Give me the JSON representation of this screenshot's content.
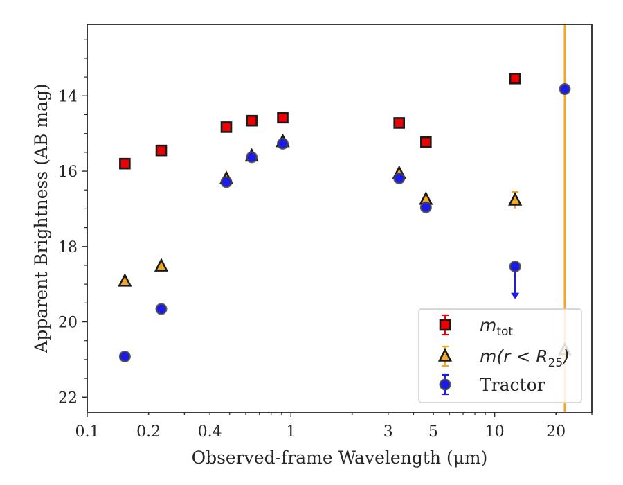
{
  "chart_data": {
    "type": "scatter",
    "title": "",
    "xlabel": "Observed-frame Wavelength (μm)",
    "ylabel": "Apparent Brightness (AB mag)",
    "xscale": "log",
    "xlim": [
      0.1,
      30
    ],
    "ylim": [
      22.4,
      12.1
    ],
    "y_inverted": true,
    "grid": false,
    "legend_position": "lower-right",
    "xticks": [
      {
        "value": 0.1,
        "label": "0.1"
      },
      {
        "value": 0.2,
        "label": "0.2"
      },
      {
        "value": 0.4,
        "label": "0.4"
      },
      {
        "value": 1,
        "label": "1"
      },
      {
        "value": 3,
        "label": "3"
      },
      {
        "value": 5,
        "label": "5"
      },
      {
        "value": 10,
        "label": "10"
      },
      {
        "value": 20,
        "label": "20"
      }
    ],
    "yticks": [
      {
        "value": 14,
        "label": "14"
      },
      {
        "value": 16,
        "label": "16"
      },
      {
        "value": 18,
        "label": "18"
      },
      {
        "value": 20,
        "label": "20"
      },
      {
        "value": 22,
        "label": "22"
      }
    ],
    "vline": {
      "x": 22.1,
      "color": "#f5a623"
    },
    "series": [
      {
        "name": "m_tot",
        "legend_main": "m",
        "legend_sub": "tot",
        "marker": "square",
        "fill": "#ee0000",
        "edge": "#1a1a1a",
        "errcolor": "#ee0000",
        "points": [
          {
            "x": 0.153,
            "y": 15.8
          },
          {
            "x": 0.231,
            "y": 15.45
          },
          {
            "x": 0.482,
            "y": 14.83
          },
          {
            "x": 0.642,
            "y": 14.66
          },
          {
            "x": 0.912,
            "y": 14.58
          },
          {
            "x": 3.4,
            "y": 14.72
          },
          {
            "x": 4.6,
            "y": 15.23
          },
          {
            "x": 12.6,
            "y": 13.54
          }
        ]
      },
      {
        "name": "m(r < R25)",
        "legend_main": "m(r < R",
        "legend_sub": "25",
        "legend_tail": ")",
        "marker": "triangle",
        "fill": "#f5a623",
        "edge": "#1a1a1a",
        "errcolor": "#f5a623",
        "points": [
          {
            "x": 0.153,
            "y": 18.92
          },
          {
            "x": 0.231,
            "y": 18.52
          },
          {
            "x": 0.482,
            "y": 16.2
          },
          {
            "x": 0.642,
            "y": 15.6
          },
          {
            "x": 0.912,
            "y": 15.22
          },
          {
            "x": 3.4,
            "y": 16.06
          },
          {
            "x": 4.6,
            "y": 16.75
          },
          {
            "x": 12.6,
            "y": 16.77,
            "err": 0.22
          },
          {
            "x": 22.1,
            "y": 20.75
          }
        ]
      },
      {
        "name": "Tractor",
        "legend_main": "Tractor",
        "marker": "circle",
        "fill": "#1a1aee",
        "edge": "#444444",
        "errcolor": "#1a1aee",
        "points": [
          {
            "x": 0.153,
            "y": 20.92
          },
          {
            "x": 0.231,
            "y": 19.66
          },
          {
            "x": 0.482,
            "y": 16.29
          },
          {
            "x": 0.642,
            "y": 15.63
          },
          {
            "x": 0.912,
            "y": 15.27
          },
          {
            "x": 3.4,
            "y": 16.19
          },
          {
            "x": 4.6,
            "y": 16.96
          },
          {
            "x": 12.6,
            "y": 18.53,
            "upper_limit": true
          },
          {
            "x": 22.1,
            "y": 13.82
          }
        ]
      }
    ]
  }
}
